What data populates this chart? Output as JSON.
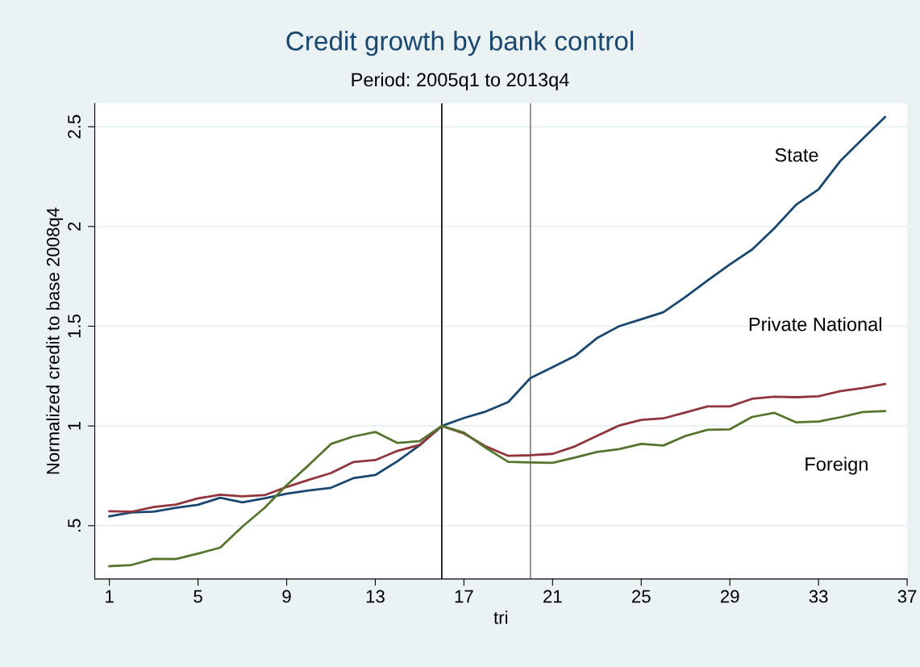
{
  "chart_data": {
    "type": "line",
    "title": "Credit growth by bank control",
    "subtitle": "Period: 2005q1 to 2013q4",
    "xlabel": "tri",
    "ylabel": "Normalized credit to base 2008q4",
    "x": [
      1,
      2,
      3,
      4,
      5,
      6,
      7,
      8,
      9,
      10,
      11,
      12,
      13,
      14,
      15,
      16,
      17,
      18,
      19,
      20,
      21,
      22,
      23,
      24,
      25,
      26,
      27,
      28,
      29,
      30,
      31,
      32,
      33,
      34,
      35,
      36
    ],
    "series": [
      {
        "name": "State",
        "color": "#1a476f",
        "values": [
          0.547,
          0.566,
          0.57,
          0.59,
          0.605,
          0.64,
          0.617,
          0.637,
          0.66,
          0.677,
          0.69,
          0.738,
          0.754,
          0.823,
          0.903,
          1.0,
          1.04,
          1.073,
          1.12,
          1.24,
          1.295,
          1.35,
          1.44,
          1.5,
          1.535,
          1.57,
          1.647,
          1.73,
          1.81,
          1.884,
          1.99,
          2.11,
          2.186,
          2.33,
          2.44,
          2.548
        ]
      },
      {
        "name": "Private National",
        "color": "#90353b",
        "values": [
          0.572,
          0.57,
          0.594,
          0.606,
          0.637,
          0.655,
          0.647,
          0.653,
          0.694,
          0.73,
          0.764,
          0.819,
          0.829,
          0.875,
          0.905,
          1.0,
          0.962,
          0.897,
          0.85,
          0.853,
          0.86,
          0.897,
          0.95,
          1.002,
          1.03,
          1.038,
          1.068,
          1.098,
          1.098,
          1.136,
          1.147,
          1.144,
          1.149,
          1.175,
          1.19,
          1.21
        ]
      },
      {
        "name": "Foreign",
        "color": "#55752f",
        "values": [
          0.297,
          0.303,
          0.334,
          0.333,
          0.36,
          0.39,
          0.495,
          0.589,
          0.703,
          0.804,
          0.91,
          0.947,
          0.97,
          0.915,
          0.924,
          1.0,
          0.967,
          0.889,
          0.82,
          0.817,
          0.815,
          0.841,
          0.87,
          0.884,
          0.91,
          0.902,
          0.95,
          0.981,
          0.983,
          1.045,
          1.066,
          1.018,
          1.022,
          1.044,
          1.07,
          1.075
        ]
      }
    ],
    "xlim": [
      0.34,
      37
    ],
    "xticks": [
      1,
      5,
      9,
      13,
      17,
      21,
      25,
      29,
      33,
      37
    ],
    "ylim": [
      0.233,
      2.617
    ],
    "yticks": [
      {
        "value": 0.5,
        "label": ".5"
      },
      1,
      1.5,
      2,
      2.5
    ],
    "ref_lines": [
      {
        "axis": "x",
        "value": 16,
        "color": "#000000"
      },
      {
        "axis": "x",
        "value": 20,
        "color": "#808080"
      }
    ],
    "grid": "y",
    "legend": false,
    "marker": "none",
    "line_style": "solid"
  }
}
